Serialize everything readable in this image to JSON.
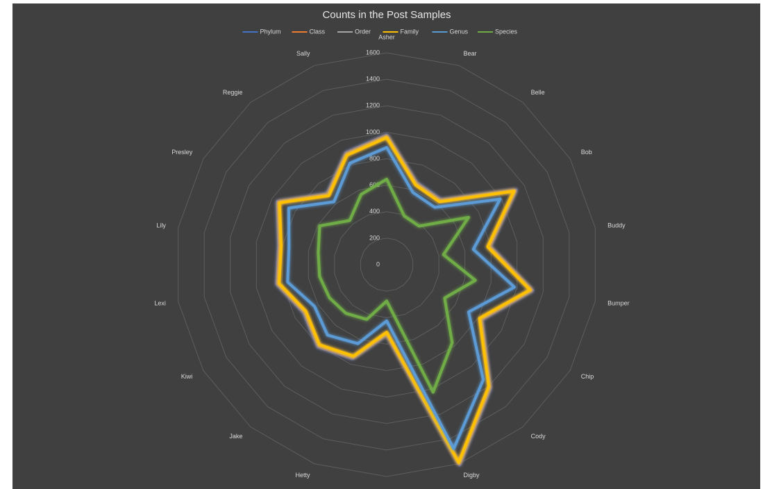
{
  "chart_data": {
    "type": "radar",
    "title": "Counts in the Post Samples",
    "categories": [
      "Asher",
      "Bear",
      "Belle",
      "Bob",
      "Buddy",
      "Bumper",
      "Chip",
      "Cody",
      "Digby",
      null,
      "Hetty",
      "Jake",
      "Kiwi",
      "Lexi",
      "Lily",
      "Presley",
      "Reggie",
      "Sally"
    ],
    "series": [
      {
        "name": "Phylum",
        "color": "#4472c4",
        "values": [
          980,
          660,
          640,
          1130,
          795,
          1120,
          830,
          1220,
          1610,
          530,
          755,
          810,
          725,
          845,
          830,
          955,
          700,
          900
        ]
      },
      {
        "name": "Class",
        "color": "#ed7d31",
        "values": [
          970,
          650,
          630,
          1120,
          785,
          1110,
          820,
          1210,
          1600,
          520,
          745,
          800,
          715,
          835,
          820,
          945,
          690,
          890
        ]
      },
      {
        "name": "Order",
        "color": "#a5a5a5",
        "values": [
          965,
          645,
          625,
          1115,
          780,
          1105,
          815,
          1205,
          1595,
          515,
          740,
          795,
          710,
          830,
          815,
          940,
          685,
          885
        ]
      },
      {
        "name": "Family",
        "color": "#ffc000",
        "values": [
          960,
          640,
          620,
          1110,
          775,
          1100,
          810,
          1200,
          1590,
          510,
          735,
          790,
          705,
          825,
          810,
          935,
          680,
          880
        ]
      },
      {
        "name": "Genus",
        "color": "#5b9bd5",
        "values": [
          885,
          580,
          565,
          990,
          665,
          980,
          715,
          1135,
          1480,
          425,
          635,
          695,
          630,
          760,
          750,
          855,
          620,
          815
        ]
      },
      {
        "name": "Species",
        "color": "#70ad47",
        "values": [
          645,
          390,
          380,
          715,
          435,
          680,
          505,
          770,
          1025,
          275,
          440,
          480,
          500,
          515,
          525,
          585,
          435,
          565
        ]
      }
    ],
    "ylim": [
      0,
      1600
    ],
    "yticks": [
      0,
      200,
      400,
      600,
      800,
      1000,
      1200,
      1400,
      1600
    ],
    "grid": true,
    "legend": "top"
  }
}
